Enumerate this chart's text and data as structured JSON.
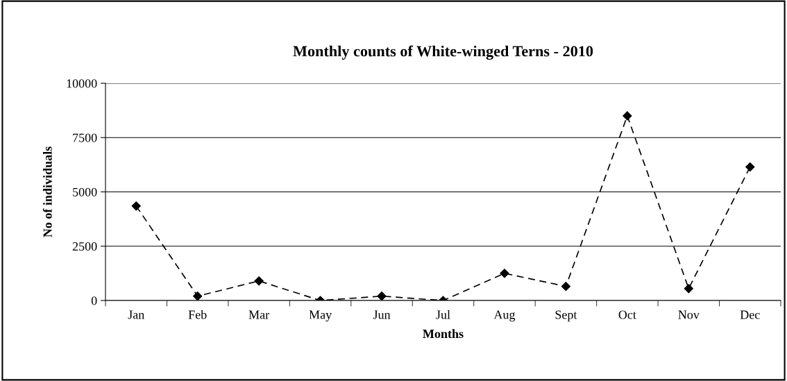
{
  "chart_data": {
    "type": "line",
    "title": "Monthly counts of White-winged Terns - 2010",
    "xlabel": "Months",
    "ylabel": "No of individuals",
    "categories": [
      "Jan",
      "Feb",
      "Mar",
      "May",
      "Jun",
      "Jul",
      "Aug",
      "Sept",
      "Oct",
      "Nov",
      "Dec"
    ],
    "series": [
      {
        "color": "#000000",
        "values": [
          4350,
          200,
          900,
          0,
          200,
          0,
          1250,
          650,
          8500,
          550,
          6150
        ]
      }
    ],
    "ylim": [
      0,
      10000
    ],
    "yticks": [
      0,
      2500,
      5000,
      7500,
      10000
    ],
    "grid": "y",
    "marker": "diamond",
    "line_style": "dashed",
    "legend": false
  }
}
